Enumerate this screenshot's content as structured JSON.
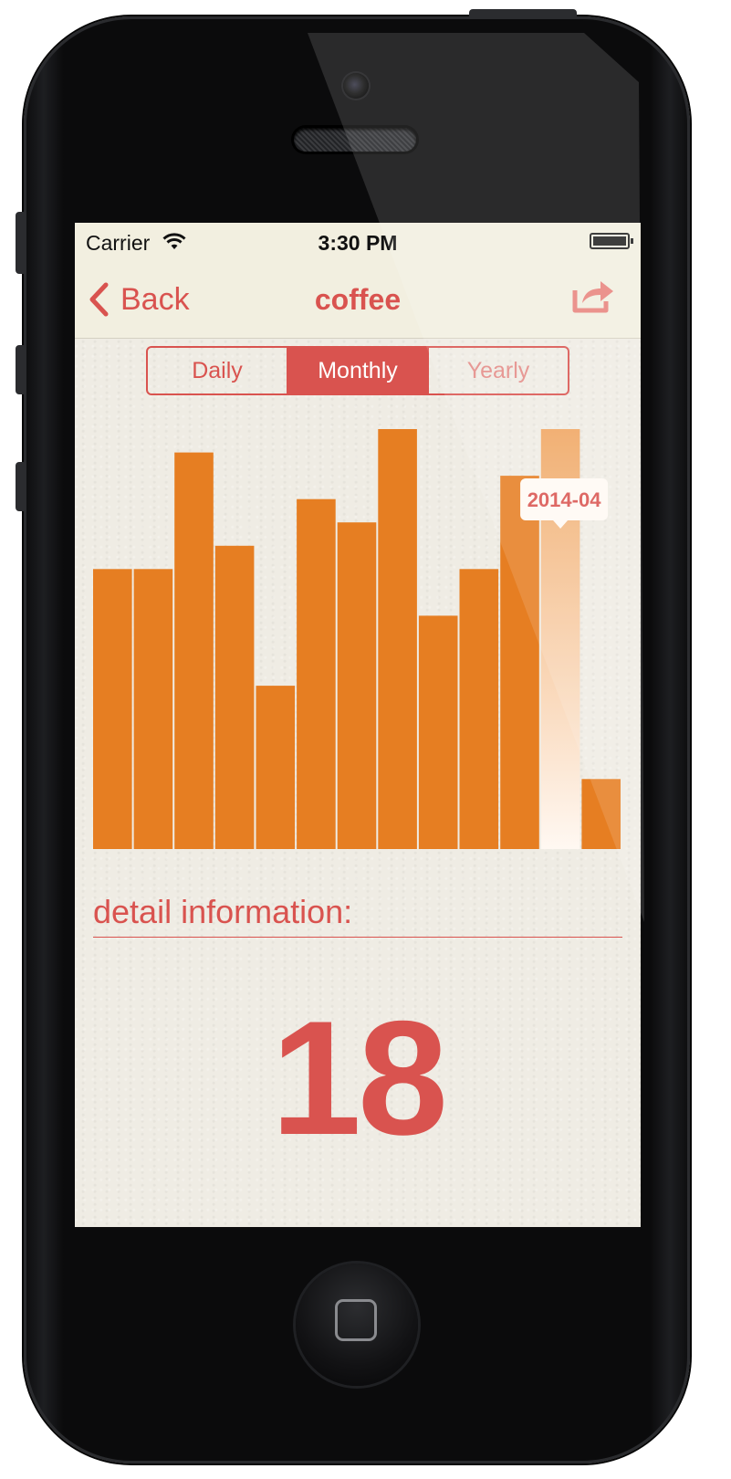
{
  "status_bar": {
    "carrier": "Carrier",
    "time": "3:30 PM"
  },
  "nav": {
    "back_label": "Back",
    "title": "coffee",
    "back_icon": "chevron-left-icon",
    "share_icon": "share-icon"
  },
  "segments": {
    "items": [
      {
        "label": "Daily"
      },
      {
        "label": "Monthly"
      },
      {
        "label": "Yearly"
      }
    ],
    "selected": "Monthly"
  },
  "chart_data": {
    "type": "bar",
    "values": [
      12,
      12,
      17,
      13,
      7,
      15,
      14,
      18,
      10,
      12,
      16,
      18,
      3
    ],
    "ylim": [
      0,
      18
    ],
    "highlight_index": 11,
    "tooltip": "2014-04",
    "colors": {
      "bar": "#e67e22",
      "highlight_top": "#f0a560",
      "highlight_bottom": "#fff8f2"
    }
  },
  "detail": {
    "label": "detail information:",
    "value": "18"
  },
  "colors": {
    "accent": "#d9534f",
    "bar": "#e67e22",
    "bar_background": "#efece4"
  }
}
